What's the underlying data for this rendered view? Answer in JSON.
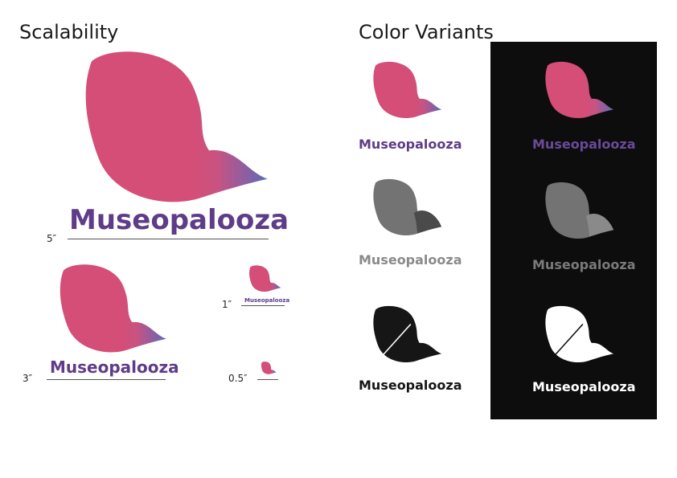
{
  "scalability": {
    "title": "Scalability",
    "sizes": [
      {
        "label": "5″"
      },
      {
        "label": "3″"
      },
      {
        "label": "1″"
      },
      {
        "label": "0.5″"
      }
    ]
  },
  "color_variants": {
    "title": "Color Variants"
  },
  "brand": {
    "wordmark": "Museopalooza",
    "colors": {
      "pink": "#d44e77",
      "blue": "#5b6cb6",
      "purple": "#5e3c88",
      "gray_fill": "#737373",
      "gray_dark": "#4a4a4a",
      "gray_text": "#8a8a8a",
      "black": "#161616",
      "white": "#ffffff",
      "panel": "#0d0d0d"
    }
  }
}
